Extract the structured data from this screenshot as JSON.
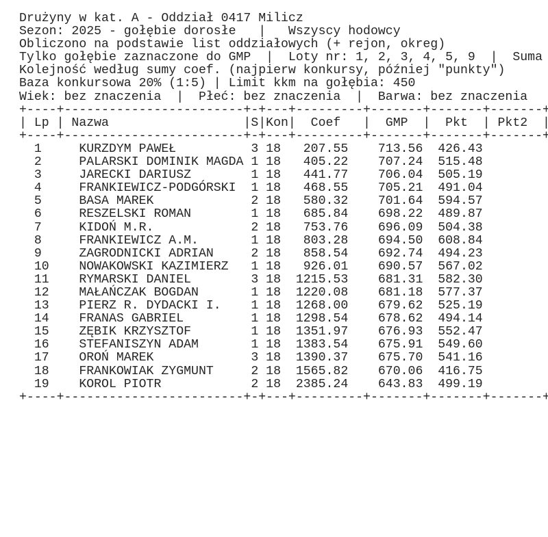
{
  "report": {
    "lines": [
      "Drużyny w kat. A - Oddział 0417 Milicz",
      "Sezon: 2025 - gołębie dorosłe   |   Wszyscy hodowcy",
      "Obliczono na podstawie list oddziałowych (+ rejon, okreg)",
      "Tylko gołębie zaznaczone do GMP  |  Loty nr: 1, 2, 3, 4, 5, 9  |  Suma",
      "Kolejność według sumy coef. (najpierw konkursy, później \"punkty\")",
      "Baza konkursowa 20% (1:5) | Limit kkm na gołębia: 450",
      "Wiek: bez znaczenia  |  Płeć: bez znaczenia  |  Barwa: bez znaczenia"
    ],
    "table": {
      "border": "+----+------------------------+-+---+---------+-------+-------+-------+",
      "header_row": "| Lp | Nazwa                  |S|Kon|  Coef   |  GMP  |  Pkt  | Pkt2  |",
      "columns": [
        "Lp",
        "Nazwa",
        "S",
        "Kon",
        "Coef",
        "GMP",
        "Pkt",
        "Pkt2"
      ],
      "rows": [
        {
          "lp": 1,
          "name": "KURZDYM PAWEŁ",
          "s": 3,
          "kon": 18,
          "coef": "207.55",
          "gmp": "713.56",
          "pkt": "426.43"
        },
        {
          "lp": 2,
          "name": "PALARSKI DOMINIK MAGDA",
          "s": 1,
          "kon": 18,
          "coef": "405.22",
          "gmp": "707.24",
          "pkt": "515.48"
        },
        {
          "lp": 3,
          "name": "JARECKI DARIUSZ",
          "s": 1,
          "kon": 18,
          "coef": "441.77",
          "gmp": "706.04",
          "pkt": "505.19"
        },
        {
          "lp": 4,
          "name": "FRANKIEWICZ-PODGÓRSKI",
          "s": 1,
          "kon": 18,
          "coef": "468.55",
          "gmp": "705.21",
          "pkt": "491.04"
        },
        {
          "lp": 5,
          "name": "BASA MAREK",
          "s": 2,
          "kon": 18,
          "coef": "580.32",
          "gmp": "701.64",
          "pkt": "594.57"
        },
        {
          "lp": 6,
          "name": "RESZELSKI ROMAN",
          "s": 1,
          "kon": 18,
          "coef": "685.84",
          "gmp": "698.22",
          "pkt": "489.87"
        },
        {
          "lp": 7,
          "name": "KIDOŃ M.R.",
          "s": 2,
          "kon": 18,
          "coef": "753.76",
          "gmp": "696.09",
          "pkt": "504.38"
        },
        {
          "lp": 8,
          "name": "FRANKIEWICZ A.M.",
          "s": 1,
          "kon": 18,
          "coef": "803.28",
          "gmp": "694.50",
          "pkt": "608.84"
        },
        {
          "lp": 9,
          "name": "ZAGRODNICKI ADRIAN",
          "s": 2,
          "kon": 18,
          "coef": "858.54",
          "gmp": "692.74",
          "pkt": "494.23"
        },
        {
          "lp": 10,
          "name": "NOWAKOWSKI KAZIMIERZ",
          "s": 1,
          "kon": 18,
          "coef": "926.01",
          "gmp": "690.57",
          "pkt": "567.02"
        },
        {
          "lp": 11,
          "name": "RYMARSKI DANIEL",
          "s": 3,
          "kon": 18,
          "coef": "1215.53",
          "gmp": "681.31",
          "pkt": "582.30"
        },
        {
          "lp": 12,
          "name": "MAŁAŃCZAK BOGDAN",
          "s": 1,
          "kon": 18,
          "coef": "1220.08",
          "gmp": "681.18",
          "pkt": "577.37"
        },
        {
          "lp": 13,
          "name": "PIERZ R. DYDACKI I.",
          "s": 1,
          "kon": 18,
          "coef": "1268.00",
          "gmp": "679.62",
          "pkt": "525.19"
        },
        {
          "lp": 14,
          "name": "FRANAS GABRIEL",
          "s": 1,
          "kon": 18,
          "coef": "1298.54",
          "gmp": "678.62",
          "pkt": "494.14"
        },
        {
          "lp": 15,
          "name": "ZĘBIK KRZYSZTOF",
          "s": 1,
          "kon": 18,
          "coef": "1351.97",
          "gmp": "676.93",
          "pkt": "552.47"
        },
        {
          "lp": 16,
          "name": "STEFANISZYN ADAM",
          "s": 1,
          "kon": 18,
          "coef": "1383.54",
          "gmp": "675.91",
          "pkt": "549.60"
        },
        {
          "lp": 17,
          "name": "OROŃ MAREK",
          "s": 3,
          "kon": 18,
          "coef": "1390.37",
          "gmp": "675.70",
          "pkt": "541.16"
        },
        {
          "lp": 18,
          "name": "FRANKOWIAK ZYGMUNT",
          "s": 2,
          "kon": 18,
          "coef": "1565.82",
          "gmp": "670.06",
          "pkt": "416.75"
        },
        {
          "lp": 19,
          "name": "KOROL PIOTR",
          "s": 2,
          "kon": 18,
          "coef": "2385.24",
          "gmp": "643.83",
          "pkt": "499.19"
        }
      ]
    }
  }
}
